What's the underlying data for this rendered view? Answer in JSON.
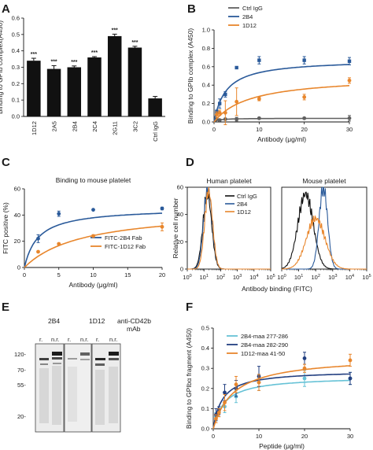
{
  "colors": {
    "black": "#111111",
    "grey": "#606060",
    "blue": "#2a5a9a",
    "orange": "#e8862c",
    "lightblue": "#66c2d6",
    "navy": "#223f80"
  },
  "chart_data": [
    {
      "panel": "A",
      "type": "bar",
      "ylabel": "Binding to GPIb complex(A450)",
      "ylim": [
        0,
        0.6
      ],
      "yticks": [
        0,
        0.1,
        0.2,
        0.3,
        0.4,
        0.5,
        0.6
      ],
      "categories": [
        "1D12",
        "2A5",
        "2B4",
        "2C4",
        "2G11",
        "3C2",
        "Ctrl IgG"
      ],
      "values": [
        0.34,
        0.29,
        0.3,
        0.36,
        0.49,
        0.42,
        0.11
      ],
      "errors": [
        0.015,
        0.02,
        0.008,
        0.005,
        0.012,
        0.008,
        0.012
      ],
      "annotations": [
        "***",
        "***",
        "***",
        "***",
        "***",
        "***",
        ""
      ]
    },
    {
      "panel": "B",
      "type": "line",
      "xlabel": "Antibody (μg/ml)",
      "ylabel": "Binding to GPIb complex (A450)",
      "xlim": [
        0,
        30
      ],
      "ylim": [
        0,
        1.0
      ],
      "xticks": [
        0,
        10,
        20,
        30
      ],
      "yticks": [
        0.0,
        0.2,
        0.4,
        0.6,
        0.8,
        1.0
      ],
      "legend_position": "top-left",
      "series": [
        {
          "name": "Ctrl IgG",
          "color": "#606060",
          "x": [
            0.6,
            1.25,
            2.5,
            5,
            10,
            20,
            30
          ],
          "y": [
            0.03,
            0.02,
            0.03,
            0.03,
            0.04,
            0.04,
            0.04
          ],
          "err": [
            0.01,
            0.01,
            0.01,
            0.02,
            0.01,
            0.01,
            0.03
          ],
          "curve": {
            "bmax": 0.04,
            "k": 1.0
          }
        },
        {
          "name": "2B4",
          "color": "#2a5a9a",
          "x": [
            0.6,
            1.25,
            2.5,
            5,
            10,
            20,
            30
          ],
          "y": [
            0.11,
            0.2,
            0.3,
            0.59,
            0.67,
            0.67,
            0.66
          ],
          "err": [
            0.02,
            0.05,
            0.03,
            0.01,
            0.04,
            0.04,
            0.04
          ],
          "curve": {
            "bmax": 0.68,
            "k": 2.7
          }
        },
        {
          "name": "1D12",
          "color": "#e8862c",
          "x": [
            0.6,
            1.25,
            2.5,
            5,
            10,
            20,
            30
          ],
          "y": [
            0.08,
            0.1,
            0.1,
            0.22,
            0.25,
            0.27,
            0.45
          ],
          "err": [
            0.03,
            0.03,
            0.13,
            0.15,
            0.02,
            0.03,
            0.03
          ],
          "curve": {
            "bmax": 0.5,
            "k": 8.0
          }
        }
      ]
    },
    {
      "panel": "C",
      "type": "line",
      "title": "Binding to mouse platelet",
      "xlabel": "Antibody (μg/ml)",
      "ylabel": "FITC positive (%)",
      "xlim": [
        0,
        20
      ],
      "ylim": [
        0,
        60
      ],
      "xticks": [
        0,
        5,
        10,
        15,
        20
      ],
      "yticks": [
        0,
        20,
        40,
        60
      ],
      "legend_position": "bottom-right",
      "series": [
        {
          "name": "FITC-2B4 Fab",
          "color": "#2a5a9a",
          "x": [
            2,
            5,
            10,
            20
          ],
          "y": [
            22,
            41,
            44,
            45
          ],
          "err": [
            3,
            2,
            0.5,
            1
          ],
          "curve": {
            "bmax": 45.5,
            "k": 2.0
          }
        },
        {
          "name": "FITC-1D12 Fab",
          "color": "#e8862c",
          "x": [
            2,
            5,
            10,
            20
          ],
          "y": [
            12,
            18,
            24,
            31
          ],
          "err": [
            0.5,
            0.5,
            1,
            3
          ],
          "curve": {
            "bmax": 45,
            "k": 8.5
          }
        }
      ]
    },
    {
      "panel": "D",
      "type": "line",
      "xlabel": "Antibody binding (FITC)",
      "ylabel": "Relative cell number",
      "xscale": "log",
      "xlim": [
        0,
        5
      ],
      "xticks_decades": [
        0,
        1,
        2,
        3,
        4,
        5
      ],
      "ylim": [
        0,
        60
      ],
      "yticks": [
        0,
        20,
        40,
        60
      ],
      "subplots": [
        {
          "title": "Human  platelet",
          "series": [
            {
              "name": "Ctrl IgG",
              "color": "#111111",
              "mu": 1.2,
              "sigma": 0.26,
              "peak": 55
            },
            {
              "name": "2B4",
              "color": "#2a5a9a",
              "mu": 1.24,
              "sigma": 0.25,
              "peak": 60
            },
            {
              "name": "1D12",
              "color": "#e8862c",
              "mu": 1.28,
              "sigma": 0.24,
              "peak": 57
            }
          ]
        },
        {
          "title": "Mouse  platelet",
          "series": [
            {
              "name": "Ctrl IgG",
              "color": "#111111",
              "mu": 1.4,
              "sigma": 0.45,
              "peak": 55
            },
            {
              "name": "2B4",
              "color": "#2a5a9a",
              "mu": 2.45,
              "sigma": 0.25,
              "peak": 60
            },
            {
              "name": "1D12",
              "color": "#e8862c",
              "mu": 2.0,
              "sigma": 0.55,
              "peak": 37
            }
          ]
        }
      ],
      "legend": [
        "Ctrl IgG",
        "2B4",
        "1D12"
      ]
    },
    {
      "panel": "F",
      "type": "line",
      "xlabel": "Peptide (μg/ml)",
      "ylabel": "Binding to GPIbα fragment (A450)",
      "xlim": [
        0,
        30
      ],
      "ylim": [
        0,
        0.5
      ],
      "xticks": [
        0,
        10,
        20,
        30
      ],
      "yticks": [
        0.0,
        0.1,
        0.2,
        0.3,
        0.4,
        0.5
      ],
      "legend_position": "top-left",
      "series": [
        {
          "name": "2B4-maa 277-286",
          "color": "#66c2d6",
          "x": [
            0.6,
            1.25,
            2.5,
            5,
            10,
            20,
            30
          ],
          "y": [
            0.06,
            0.08,
            0.11,
            0.16,
            0.23,
            0.25,
            0.25
          ],
          "err": [
            0.02,
            0.02,
            0.03,
            0.03,
            0.04,
            0.04,
            0.03
          ],
          "curve": {
            "bmax": 0.26,
            "k": 2.5
          }
        },
        {
          "name": "2B4-maa 282-290",
          "color": "#223f80",
          "x": [
            0.6,
            1.25,
            2.5,
            5,
            10,
            20,
            30
          ],
          "y": [
            0.07,
            0.09,
            0.18,
            0.2,
            0.26,
            0.35,
            0.25
          ],
          "err": [
            0.03,
            0.02,
            0.04,
            0.04,
            0.05,
            0.03,
            0.03
          ],
          "curve": {
            "bmax": 0.29,
            "k": 2.0
          }
        },
        {
          "name": "1D12-maa 41-50",
          "color": "#e8862c",
          "x": [
            0.6,
            1.25,
            2.5,
            5,
            10,
            20,
            30
          ],
          "y": [
            0.05,
            0.08,
            0.13,
            0.22,
            0.23,
            0.3,
            0.34
          ],
          "err": [
            0.02,
            0.02,
            0.04,
            0.04,
            0.04,
            0.02,
            0.03
          ],
          "curve": {
            "bmax": 0.36,
            "k": 4.5
          }
        }
      ]
    }
  ],
  "panel_e": {
    "lane_groups": [
      "2B4",
      "1D12",
      "anti-CD42b",
      "mAb"
    ],
    "lane_conditions": [
      "r.",
      "n.r.",
      "r.",
      "n.r.",
      "r.",
      "n.r."
    ],
    "marker_labels": [
      "120-",
      "70-",
      "55-",
      "20-"
    ]
  },
  "panel_letters": [
    "A",
    "B",
    "C",
    "D",
    "E",
    "F"
  ]
}
